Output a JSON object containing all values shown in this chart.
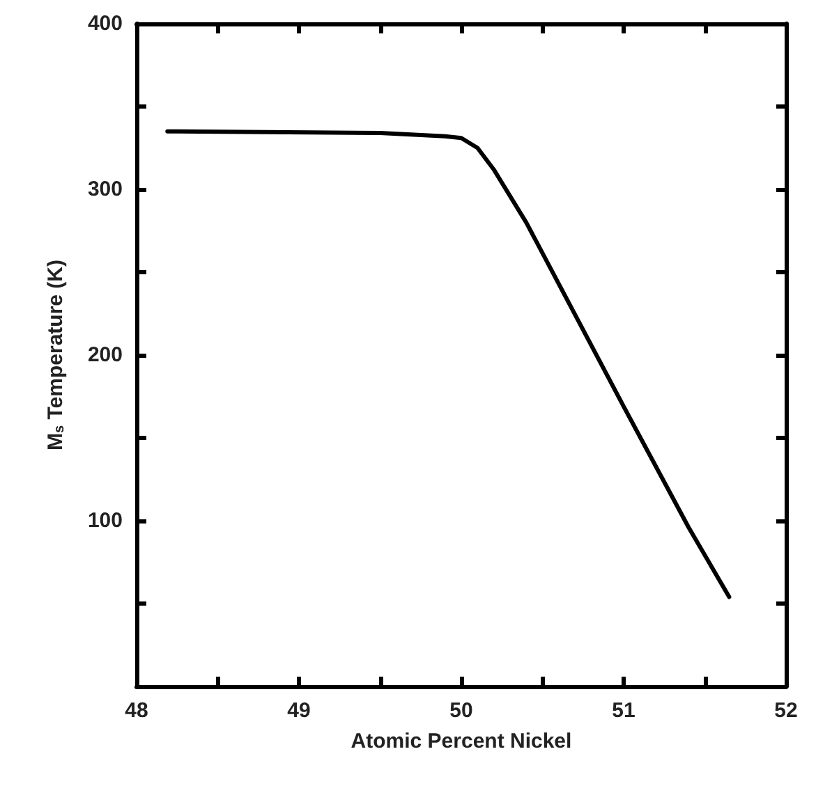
{
  "chart_data": {
    "type": "line",
    "xlabel": "Atomic Percent Nickel",
    "ylabel": "M$_{s}$ Temperature (K)",
    "x": [
      48.19,
      49.5,
      49.9,
      50.0,
      50.1,
      50.2,
      50.4,
      50.6,
      51.0,
      51.4,
      51.65
    ],
    "series": [
      {
        "color": "#000000",
        "values": [
          335,
          334,
          332,
          331,
          325,
          312,
          280,
          243,
          169,
          96,
          54
        ]
      }
    ],
    "xlim": [
      48,
      52
    ],
    "ylim": [
      0,
      400
    ],
    "xticks": [
      48,
      {
        "value": 48.5,
        "label": null
      },
      49,
      {
        "value": 49.5,
        "label": null
      },
      50,
      {
        "value": 50.5,
        "label": null
      },
      51,
      {
        "value": 51.5,
        "label": null
      },
      52
    ],
    "yticks": [
      {
        "value": 0,
        "label": null
      },
      {
        "value": 50,
        "label": null
      },
      100,
      {
        "value": 150,
        "label": null
      },
      200,
      {
        "value": 250,
        "label": null
      },
      300,
      {
        "value": 350,
        "label": null
      },
      400
    ],
    "grid": false,
    "marker": "none",
    "line_style": "solid"
  }
}
